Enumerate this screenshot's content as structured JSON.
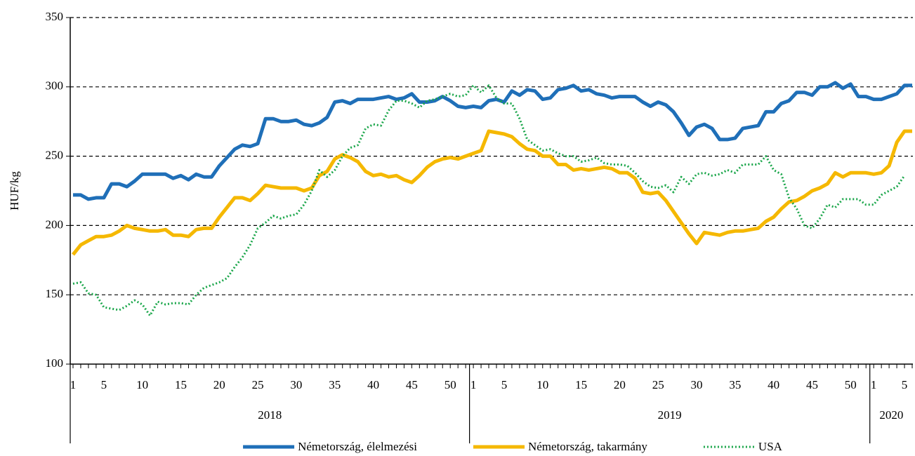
{
  "chart_data": {
    "type": "line",
    "y_label": "HUF/kg",
    "categories": [
      "1",
      null,
      null,
      null,
      "5",
      null,
      null,
      null,
      null,
      "10",
      null,
      null,
      null,
      null,
      "15",
      null,
      null,
      null,
      null,
      "20",
      null,
      null,
      null,
      null,
      "25",
      null,
      null,
      null,
      null,
      "30",
      null,
      null,
      null,
      null,
      "35",
      null,
      null,
      null,
      null,
      "40",
      null,
      null,
      null,
      null,
      "45",
      null,
      null,
      null,
      null,
      "50",
      null,
      null,
      "1",
      null,
      null,
      null,
      "5",
      null,
      null,
      null,
      null,
      "10",
      null,
      null,
      null,
      null,
      "15",
      null,
      null,
      null,
      null,
      "20",
      null,
      null,
      null,
      null,
      "25",
      null,
      null,
      null,
      null,
      "30",
      null,
      null,
      null,
      null,
      "35",
      null,
      null,
      null,
      null,
      "40",
      null,
      null,
      null,
      null,
      "45",
      null,
      null,
      null,
      null,
      "50",
      null,
      null,
      "1",
      null,
      null,
      null,
      "5",
      null
    ],
    "groups": [
      "2018",
      "2019",
      "2020"
    ],
    "ylim": [
      100,
      350
    ],
    "yticks": [
      100,
      150,
      200,
      250,
      300,
      350
    ],
    "grid": true,
    "legend": "bottom",
    "series": [
      {
        "name": "Németország, élelmezési",
        "color": "#1f6fb8",
        "style": "solid",
        "values": [
          222,
          222,
          219,
          220,
          220,
          230,
          230,
          228,
          232,
          237,
          237,
          237,
          237,
          234,
          236,
          233,
          237,
          235,
          235,
          243,
          249,
          255,
          258,
          257,
          259,
          277,
          277,
          275,
          275,
          276,
          273,
          272,
          274,
          278,
          289,
          290,
          288,
          291,
          291,
          291,
          292,
          293,
          291,
          292,
          295,
          289,
          289,
          290,
          293,
          290,
          286,
          285,
          286,
          285,
          290,
          291,
          289,
          297,
          294,
          298,
          297,
          291,
          292,
          298,
          299,
          301,
          297,
          298,
          295,
          294,
          292,
          293,
          293,
          293,
          289,
          286,
          289,
          287,
          282,
          274,
          265,
          271,
          273,
          270,
          262,
          262,
          263,
          270,
          271,
          272,
          282,
          282,
          288,
          290,
          296,
          296,
          294,
          300,
          300,
          303,
          299,
          302,
          293,
          293,
          291,
          291,
          293,
          295,
          301,
          301
        ]
      },
      {
        "name": "Németország, takarmány",
        "color": "#f5b800",
        "style": "solid",
        "values": [
          179,
          186,
          189,
          192,
          192,
          193,
          196,
          200,
          198,
          197,
          196,
          196,
          197,
          193,
          193,
          192,
          197,
          198,
          198,
          206,
          213,
          220,
          220,
          218,
          223,
          229,
          228,
          227,
          227,
          227,
          225,
          227,
          236,
          239,
          248,
          251,
          249,
          246,
          239,
          236,
          237,
          235,
          236,
          233,
          231,
          236,
          242,
          246,
          248,
          249,
          248,
          250,
          252,
          254,
          268,
          267,
          266,
          264,
          259,
          255,
          254,
          250,
          250,
          244,
          244,
          240,
          241,
          240,
          241,
          242,
          241,
          238,
          238,
          234,
          224,
          223,
          224,
          218,
          210,
          202,
          194,
          187,
          195,
          194,
          193,
          195,
          196,
          196,
          197,
          198,
          203,
          206,
          212,
          217,
          218,
          221,
          225,
          227,
          230,
          238,
          235,
          238,
          238,
          238,
          237,
          238,
          243,
          260,
          268,
          268
        ]
      },
      {
        "name": "USA",
        "color": "#1aa64a",
        "style": "dotted",
        "values": [
          158,
          159,
          151,
          150,
          141,
          140,
          139,
          142,
          146,
          143,
          135,
          145,
          143,
          144,
          144,
          143,
          150,
          155,
          157,
          159,
          162,
          170,
          177,
          186,
          198,
          202,
          207,
          205,
          207,
          208,
          215,
          225,
          240,
          235,
          240,
          250,
          256,
          258,
          270,
          273,
          272,
          283,
          290,
          290,
          288,
          285,
          290,
          291,
          293,
          295,
          293,
          294,
          301,
          296,
          301,
          292,
          288,
          288,
          277,
          262,
          258,
          254,
          255,
          252,
          250,
          250,
          246,
          247,
          249,
          245,
          244,
          244,
          243,
          238,
          232,
          228,
          227,
          229,
          224,
          235,
          230,
          237,
          238,
          236,
          237,
          240,
          238,
          244,
          244,
          244,
          250,
          240,
          237,
          220,
          212,
          200,
          198,
          205,
          215,
          213,
          219,
          219,
          219,
          215,
          215,
          222,
          225,
          228,
          236,
          null
        ]
      }
    ]
  }
}
